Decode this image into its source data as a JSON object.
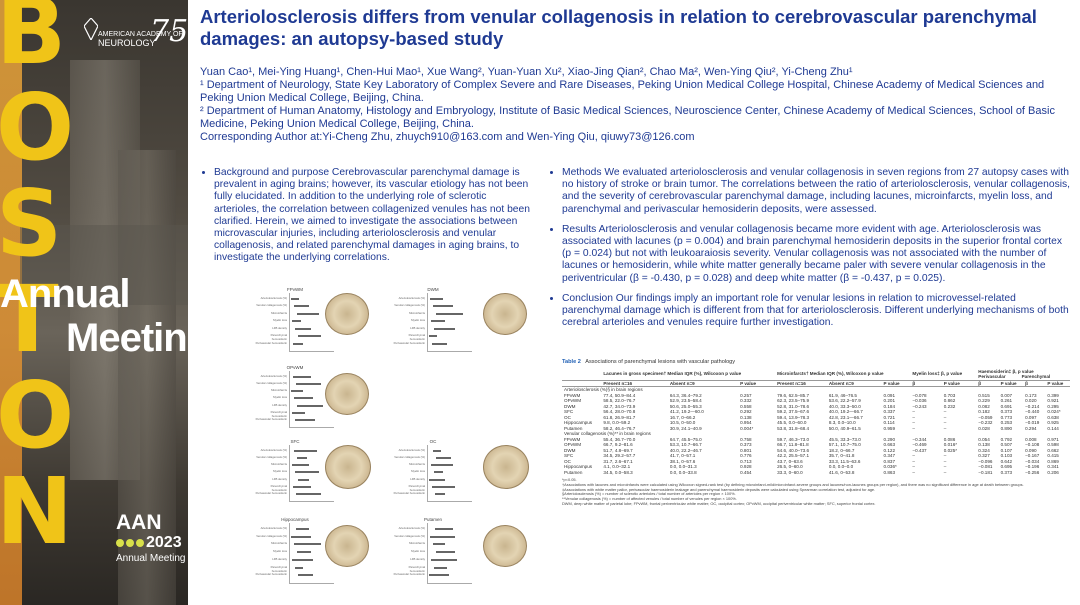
{
  "banner": {
    "boston_letters": [
      "B",
      "O",
      "S",
      "T",
      "O",
      "N"
    ],
    "annual": "Annual",
    "meeting": "Meeting",
    "aan_text": [
      "AMERICAN ACADEMY OF",
      "NEUROLOGY"
    ],
    "aan_75": "75",
    "aan_big": "AAN",
    "aan_year": "2023",
    "aan_sub": "Annual Meeting"
  },
  "header": {
    "title": "Arteriolosclerosis differs from venular collagenosis in relation to cerebrovascular parenchymal damages: an autopsy-based study",
    "authors": "Yuan Cao¹, Mei-Ying Huang¹, Chen-Hui Mao¹, Xue Wang², Yuan-Yuan Xu², Xiao-Jing Qian², Chao Ma², Wen-Ying Qiu², Yi-Cheng Zhu¹",
    "affil1": "¹ Department of Neurology, State Key Laboratory of Complex Severe and Rare Diseases, Peking Union Medical College Hospital, Chinese Academy of Medical Sciences and Peking Union Medical College, Beijing, China.",
    "affil2": "² Department of Human Anatomy, Histology and Embryology, Institute of Basic Medical Sciences, Neuroscience Center, Chinese Academy of Medical Sciences, School of Basic Medicine, Peking Union Medical College, Beijing, China.",
    "corresponding": "Corresponding Author at:Yi-Cheng Zhu, zhuych910@163.com and Wen-Ying Qiu, qiuwy73@126.com"
  },
  "left_bullets": [
    "Background and purpose Cerebrovascular parenchymal damage is prevalent in aging brains; however, its vascular etiology has not been fully elucidated. In addition to the underlying role of sclerotic arterioles, the correlation between collagenized venules has not been clarified. Herein, we aimed to investigate the associations between microvascular injuries, including arteriolosclerosis and venular collagenosis, and related parenchymal damages in aging brains, to investigate the underlying correlations."
  ],
  "right_bullets": [
    "Methods We evaluated arteriolosclerosis and venular collagenosis in seven regions from 27 autopsy cases with no history of stroke or brain tumor. The correlations between the ratio of arteriolosclerosis, venular collagenosis, and the severity of cerebrovascular parenchymal damage, including lacunes, microinfarcts, myelin loss, and parenchymal and perivascular hemosiderin deposits, were assessed.",
    "Results Arteriolosclerosis and venular collagenosis became more evident with age. Arteriolosclerosis was associated with lacunes (p = 0.004) and brain parenchymal hemosiderin deposits in the superior frontal cortex (p = 0.024) but not with leukoaraiosis severity. Venular collagenosis was not associated with the number of lacunes or hemosiderin, while white matter generally became paler with severe venular collagenosis in the periventricular (β = -0.430, p = 0.028) and deep white matter (β = -0.437, p = 0.025).",
    "Conclusion Our findings imply an important role for venular lesions in relation to microvessel-related parenchymal damage which is different from that for arteriolosclerosis. Different underlying mechanisms of both cerebral arterioles and venules require further investigation."
  ],
  "figure": {
    "panels": [
      "FPvWM",
      "DWM",
      "OPvWM",
      "SFC",
      "OC",
      "Hippocampus",
      "Putamen"
    ],
    "row_labels": [
      "Arteriolosclerosis (%)",
      "Venular collagenosis (%)",
      "Microinfarcts",
      "Myelin loss",
      "LFB density",
      "Parenchymal hemosiderin",
      "Perivascular hemosiderin"
    ]
  },
  "table": {
    "caption_label": "Table 2",
    "caption_text": "Associations of parenchymal lesions with vascular pathology",
    "group_headers": [
      "Lacunes in gross specimen† Median IQR (%), Wilcoxon p value",
      "Microinfarcts† Median IQR (%), Wilcoxon p value",
      "Myelin loss‡ β, p value",
      "Haemosiderin‡ β, p value"
    ],
    "sub_headers": [
      "",
      "Present n=16",
      "Absent n=9",
      "P value",
      "Present n=16",
      "Absent n=9",
      "P value",
      "β",
      "P value",
      "β",
      "P value",
      "β",
      "P value"
    ],
    "haemo_sub": [
      "Perivascular",
      "Parenchymal"
    ],
    "section1": "Arteriolosclerosis (%)§ in brain regions",
    "rows1": [
      [
        "FPvWM",
        "77.4, 50.9–84.4",
        "64.3, 36.4–79.2",
        "0.257",
        "79.6, 62.5–85.7",
        "61.9, 46–76.5",
        "0.091",
        "−0.078",
        "0.703",
        "0.515",
        "0.007",
        "0.173",
        "0.399"
      ],
      [
        "OPvWM",
        "58.5, 22.0–76.7",
        "52.9, 23.5–58.4",
        "0.332",
        "62.3, 23.5–75.9",
        "53.6, 22.2–57.9",
        "0.201",
        "−0.036",
        "0.862",
        "0.229",
        "0.261",
        "0.020",
        "0.921"
      ],
      [
        "DWM",
        "42.7, 34.0–73.9",
        "50.6, 25.0–55.3",
        "0.558",
        "52.8, 31.0–78.6",
        "40.0, 33.3–50.0",
        "0.184",
        "−0.243",
        "0.232",
        "0.082",
        "0.691",
        "−0.214",
        "0.295"
      ],
      [
        "SFC",
        "56.4, 28.0–70.8",
        "41.2, 19.2—60.0",
        "0.292",
        "59.2, 37.5–67.6",
        "40.0, 19.2—66.7",
        "0.337",
        "–",
        "–",
        "0.182",
        "0.373",
        "−0.440",
        "0.024*"
      ],
      [
        "OC",
        "61.8, 26.9–81.7",
        "16.7, 0–66.2",
        "0.138",
        "59.4, 13.9–78.3",
        "42.8, 23.1—66.7",
        "0.721",
        "–",
        "–",
        "−0.059",
        "0.773",
        "0.097",
        "0.638"
      ],
      [
        "Hippocampus",
        "9.8, 0.0–59.2",
        "10.5, 0–50.0",
        "0.954",
        "45.5, 0.0–60.0",
        "8.3, 0.0–10.0",
        "0.114",
        "–",
        "–",
        "−0.232",
        "0.253",
        "−0.019",
        "0.925"
      ],
      [
        "Putamen",
        "58.2, 46.4–76.7",
        "30.9, 24.1–40.9",
        "0.004*",
        "53.8, 31.8–68.4",
        "50.0, 40.9–61.5",
        "0.959",
        "–",
        "–",
        "0.028",
        "0.890",
        "0.294",
        "0.144"
      ]
    ],
    "section2": "Venular collagenosis (%)** in brain regions",
    "rows2": [
      [
        "FPvWM",
        "55.4, 36.7–70.0",
        "64.7, 45.5–75.0",
        "0.758",
        "59.7, 46.3–73.0",
        "45.5, 33.3–73.0",
        "0.290",
        "−0.344",
        "0.086",
        "0.054",
        "0.792",
        "0.008",
        "0.971"
      ],
      [
        "OPvWM",
        "66.7, 9.2–81.6",
        "53.3, 10.7–66.7",
        "0.373",
        "66.7, 11.8–81.8",
        "57.1, 10.7–75.0",
        "0.663",
        "−0.469",
        "0.016*",
        "0.138",
        "0.507",
        "−0.108",
        "0.598"
      ],
      [
        "DWM",
        "51.7, 4.8–69.7",
        "40.0, 22.2–46.7",
        "0.801",
        "54.6, 40.0–73.6",
        "18.2, 0–66.7",
        "0.122",
        "−0.437",
        "0.025*",
        "0.324",
        "0.107",
        "0.090",
        "0.662"
      ],
      [
        "SFC",
        "34.5, 29.2–57.7",
        "41.7, 0–57.1",
        "0.776",
        "42.2, 25.5–57.1",
        "35.7, 0–41.8",
        "0.347",
        "–",
        "–",
        "0.327",
        "0.103",
        "−0.167",
        "0.415"
      ],
      [
        "OC",
        "31.7, 2.6–67.1",
        "38.1, 0–57.6",
        "0.713",
        "43.7, 0–63.6",
        "33.3, 11.5–63.6",
        "0.837",
        "–",
        "–",
        "−0.096",
        "0.642",
        "−0.034",
        "0.869"
      ],
      [
        "Hippocampus",
        "4.1, 0.0–32.1",
        "0.0, 0.0–31.3",
        "0.928",
        "26.5, 0–60.0",
        "0.0, 0.0–0.0",
        "0.036*",
        "–",
        "–",
        "−0.081",
        "0.695",
        "−0.196",
        "0.341"
      ],
      [
        "Putamen",
        "34.5, 0.0–58.3",
        "0.0, 0.0–33.8",
        "0.454",
        "33.3, 0–60.0",
        "41.6, 0–53.8",
        "0.863",
        "–",
        "–",
        "−0.181",
        "0.373",
        "−0.256",
        "0.206"
      ]
    ],
    "footnotes": [
      "*p<0.05.",
      "†Associations with lacunes and microinfarcts were calculated using Wilcoxon signed-rank test (by defining microinfarct-mild/microinfarct-severe groups and lacunes/non-lacunes groups per region), and there was no significant difference in age at death between groups.",
      "‡Associations with white matter pallor, perivascular haemosiderin leakage and parenchymal haemosiderin deposits were calculated using Spearman correlation test, adjusted for age.",
      "§Arteriolosclerosis (%) = number of sclerotic arterioles / total number of arterioles per region × 100%.",
      "**Venular collagenosis (%) = number of affected venules / total number of venules per region × 100%.",
      "DWM, deep white matter of parietal lobe; FPvWM, frontal periventricular white matter; OC, occipital cortex; OPvWM, occipital periventricular white matter; SFC, superior frontal cortex."
    ]
  }
}
